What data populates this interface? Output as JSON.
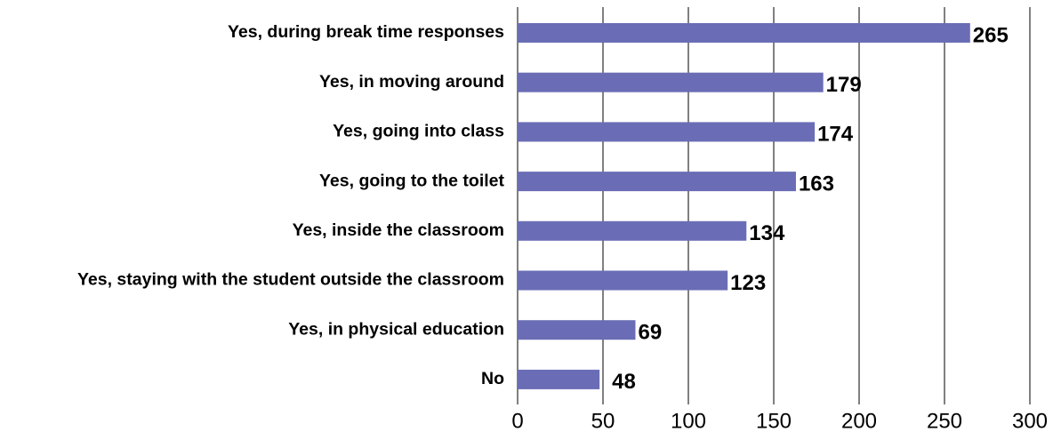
{
  "chart_data": {
    "type": "barh",
    "categories": [
      "Yes, during break time responses",
      "Yes, in moving around",
      "Yes, going into class",
      "Yes, going to the toilet",
      "Yes, inside the classroom",
      "Yes, staying with the student outside the classroom",
      "Yes, in physical education",
      "No"
    ],
    "values": [
      265,
      179,
      174,
      163,
      134,
      123,
      69,
      48
    ],
    "color": "#6a6db5",
    "xlim": [
      0,
      300
    ],
    "xticks": [
      0,
      50,
      100,
      150,
      200,
      250,
      300
    ],
    "grid": true
  }
}
